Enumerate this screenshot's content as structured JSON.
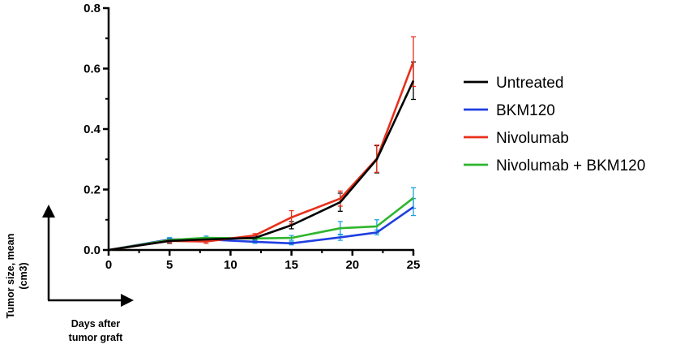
{
  "chart_data": {
    "type": "line",
    "title": "",
    "xlabel": "Days after tumor graft",
    "ylabel": "Tumor size, mean (cm3)",
    "xlabel_lines": [
      "Days after",
      "tumor graft"
    ],
    "ylabel_lines": [
      "Tumor size, mean",
      "(cm3)"
    ],
    "xlim": [
      0,
      25
    ],
    "ylim": [
      0,
      0.8
    ],
    "xticks": [
      0,
      5,
      10,
      15,
      20,
      25
    ],
    "xtick_labels": [
      "0",
      "5",
      "10",
      "15",
      "20",
      "25"
    ],
    "yticks": [
      0.0,
      0.2,
      0.4,
      0.6,
      0.8
    ],
    "ytick_labels": [
      "0.0",
      "0.2",
      "0.4",
      "0.6",
      "0.8"
    ],
    "grid": false,
    "legend_position": "right",
    "x": [
      0,
      5,
      8,
      12,
      15,
      19,
      22,
      25
    ],
    "series": [
      {
        "name": "Untreated",
        "color": "#000000",
        "err_color": "#000000",
        "values": [
          0.0,
          0.03,
          0.035,
          0.04,
          0.082,
          0.158,
          0.3,
          0.56
        ],
        "errors": [
          0.0,
          0.008,
          0.006,
          0.006,
          0.012,
          0.03,
          0.045,
          0.062
        ]
      },
      {
        "name": "BKM120",
        "color": "#1f3fe0",
        "err_color": "#1ea0e0",
        "values": [
          0.0,
          0.035,
          0.035,
          0.027,
          0.022,
          0.042,
          0.058,
          0.142
        ],
        "errors": [
          0.0,
          0.006,
          0.006,
          0.005,
          0.005,
          0.01,
          0.008,
          0.028
        ]
      },
      {
        "name": "Nivolumab",
        "color": "#e8301c",
        "err_color": "#e8301c",
        "values": [
          0.0,
          0.03,
          0.028,
          0.048,
          0.108,
          0.17,
          0.302,
          0.623
        ],
        "errors": [
          0.0,
          0.006,
          0.006,
          0.006,
          0.022,
          0.025,
          0.045,
          0.082
        ]
      },
      {
        "name": "Nivolumab + BKM120",
        "color": "#2fb52f",
        "err_color": "#1ea0e0",
        "values": [
          0.0,
          0.033,
          0.04,
          0.038,
          0.04,
          0.072,
          0.078,
          0.172
        ],
        "errors": [
          0.0,
          0.006,
          0.006,
          0.006,
          0.008,
          0.022,
          0.022,
          0.034
        ]
      }
    ]
  }
}
